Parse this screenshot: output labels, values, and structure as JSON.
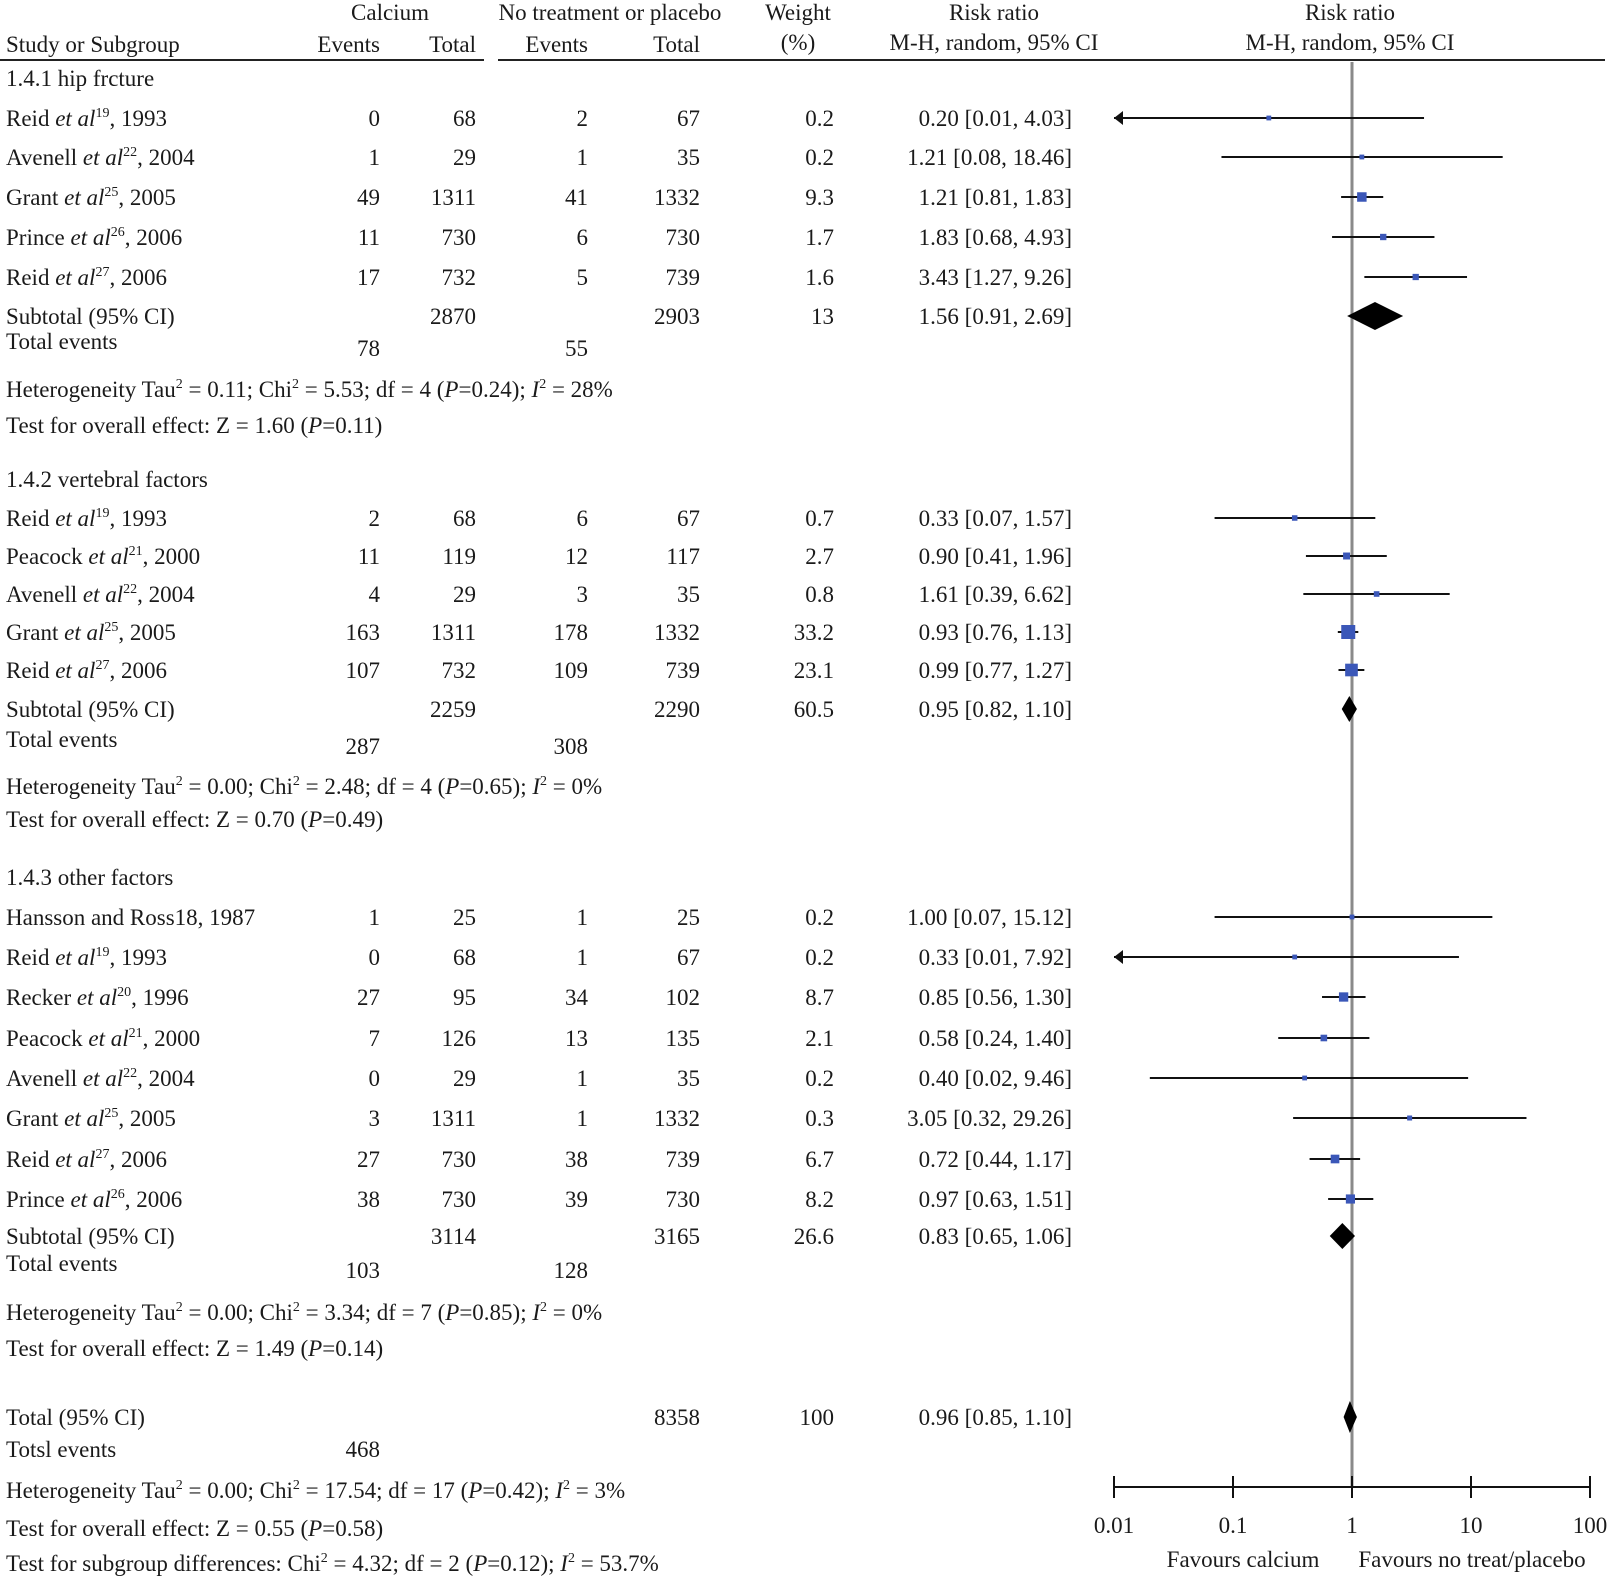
{
  "header": {
    "study_col": "Study or Subgroup",
    "calcium_group": "Calcium",
    "control_group": "No treatment or placebo",
    "events": "Events",
    "total": "Total",
    "weight_l1": "Weight",
    "weight_l2": "(%)",
    "rr_l1": "Risk ratio",
    "rr_l2": "M-H, random, 95% CI"
  },
  "chart_data": {
    "type": "forest",
    "x_scale": "log",
    "xlim": [
      0.01,
      100
    ],
    "x_ticks": [
      "0.01",
      "0.1",
      "1",
      "10",
      "100"
    ],
    "x_tick_values": [
      0.01,
      0.1,
      1,
      10,
      100
    ],
    "reference_line": 1,
    "favours_left": "Favours calcium",
    "favours_right": "Favours no treat/placebo",
    "series_color": "#3b57b8",
    "subgroups": [
      {
        "title": "1.4.1 hip frcture",
        "studies": [
          {
            "author": "Reid ",
            "etal": "et al",
            "ref": "19",
            "year": ", 1993",
            "ce": "0",
            "ct": "68",
            "pe": "2",
            "pt": "67",
            "weight": "0.2",
            "ci": "0.20 [0.01, 4.03]",
            "rr": 0.2,
            "lo": 0.01,
            "hi": 4.03
          },
          {
            "author": "Avenell ",
            "etal": "et al",
            "ref": "22",
            "year": ", 2004",
            "ce": "1",
            "ct": "29",
            "pe": "1",
            "pt": "35",
            "weight": "0.2",
            "ci": "1.21 [0.08, 18.46]",
            "rr": 1.21,
            "lo": 0.08,
            "hi": 18.46
          },
          {
            "author": "Grant ",
            "etal": "et al",
            "ref": "25",
            "year": ", 2005",
            "ce": "49",
            "ct": "1311",
            "pe": "41",
            "pt": "1332",
            "weight": "9.3",
            "ci": "1.21 [0.81, 1.83]",
            "rr": 1.21,
            "lo": 0.81,
            "hi": 1.83
          },
          {
            "author": "Prince ",
            "etal": "et al",
            "ref": "26",
            "year": ", 2006",
            "ce": "11",
            "ct": "730",
            "pe": "6",
            "pt": "730",
            "weight": "1.7",
            "ci": "1.83 [0.68, 4.93]",
            "rr": 1.83,
            "lo": 0.68,
            "hi": 4.93
          },
          {
            "author": "Reid ",
            "etal": "et al",
            "ref": "27",
            "year": ", 2006",
            "ce": "17",
            "ct": "732",
            "pe": "5",
            "pt": "739",
            "weight": "1.6",
            "ci": "3.43 [1.27, 9.26]",
            "rr": 3.43,
            "lo": 1.27,
            "hi": 9.26
          }
        ],
        "subtotal_label": "Subtotal (95% CI)",
        "subtotal": {
          "ct": "2870",
          "pt": "2903",
          "weight": "13",
          "ci": "1.56 [0.91, 2.69]",
          "rr": 1.56,
          "lo": 0.91,
          "hi": 2.69
        },
        "total_events_label": "Total events",
        "total_events": {
          "c": "78",
          "p": "55"
        },
        "het_a": "Heterogeneity Tau",
        "het_b": " = 0.11; Chi",
        "het_c": " = 5.53; df = 4 (",
        "het_d": "=0.24); ",
        "het_e": " = 28%",
        "test_a": "Test for overall effect: Z = 1.60 (",
        "test_b": "=0.11)"
      },
      {
        "title": "1.4.2 vertebral factors",
        "studies": [
          {
            "author": "Reid ",
            "etal": "et al",
            "ref": "19",
            "year": ", 1993",
            "ce": "2",
            "ct": "68",
            "pe": "6",
            "pt": "67",
            "weight": "0.7",
            "ci": "0.33 [0.07, 1.57]",
            "rr": 0.33,
            "lo": 0.07,
            "hi": 1.57
          },
          {
            "author": "Peacock ",
            "etal": "et al",
            "ref": "21",
            "year": ", 2000",
            "ce": "11",
            "ct": "119",
            "pe": "12",
            "pt": "117",
            "weight": "2.7",
            "ci": "0.90 [0.41, 1.96]",
            "rr": 0.9,
            "lo": 0.41,
            "hi": 1.96
          },
          {
            "author": "Avenell ",
            "etal": "et al",
            "ref": "22",
            "year": ", 2004",
            "ce": "4",
            "ct": "29",
            "pe": "3",
            "pt": "35",
            "weight": "0.8",
            "ci": "1.61 [0.39, 6.62]",
            "rr": 1.61,
            "lo": 0.39,
            "hi": 6.62
          },
          {
            "author": "Grant ",
            "etal": "et al",
            "ref": "25",
            "year": ", 2005",
            "ce": "163",
            "ct": "1311",
            "pe": "178",
            "pt": "1332",
            "weight": "33.2",
            "ci": "0.93 [0.76, 1.13]",
            "rr": 0.93,
            "lo": 0.76,
            "hi": 1.13
          },
          {
            "author": "Reid ",
            "etal": "et al",
            "ref": "27",
            "year": ", 2006",
            "ce": "107",
            "ct": "732",
            "pe": "109",
            "pt": "739",
            "weight": "23.1",
            "ci": "0.99 [0.77, 1.27]",
            "rr": 0.99,
            "lo": 0.77,
            "hi": 1.27
          }
        ],
        "subtotal_label": "Subtotal (95% CI)",
        "subtotal": {
          "ct": "2259",
          "pt": "2290",
          "weight": "60.5",
          "ci": "0.95 [0.82, 1.10]",
          "rr": 0.95,
          "lo": 0.82,
          "hi": 1.1
        },
        "total_events_label": "Total events",
        "total_events": {
          "c": "287",
          "p": "308"
        },
        "het_a": "Heterogeneity Tau",
        "het_b": " = 0.00; Chi",
        "het_c": " = 2.48; df = 4 (",
        "het_d": "=0.65); ",
        "het_e": " = 0%",
        "test_a": "Test for overall effect: Z = 0.70 (",
        "test_b": "=0.49)"
      },
      {
        "title": "1.4.3 other factors",
        "studies": [
          {
            "author": "Hansson and Ross18, 1987",
            "etal": "",
            "ref": "",
            "year": "",
            "ce": "1",
            "ct": "25",
            "pe": "1",
            "pt": "25",
            "weight": "0.2",
            "ci": "1.00 [0.07, 15.12]",
            "rr": 1.0,
            "lo": 0.07,
            "hi": 15.12
          },
          {
            "author": "Reid ",
            "etal": "et al",
            "ref": "19",
            "year": ", 1993",
            "ce": "0",
            "ct": "68",
            "pe": "1",
            "pt": "67",
            "weight": "0.2",
            "ci": "0.33 [0.01, 7.92]",
            "rr": 0.33,
            "lo": 0.01,
            "hi": 7.92
          },
          {
            "author": "Recker ",
            "etal": "et al",
            "ref": "20",
            "year": ", 1996",
            "ce": "27",
            "ct": "95",
            "pe": "34",
            "pt": "102",
            "weight": "8.7",
            "ci": "0.85 [0.56, 1.30]",
            "rr": 0.85,
            "lo": 0.56,
            "hi": 1.3
          },
          {
            "author": "Peacock ",
            "etal": "et al",
            "ref": "21",
            "year": ", 2000",
            "ce": "7",
            "ct": "126",
            "pe": "13",
            "pt": "135",
            "weight": "2.1",
            "ci": "0.58 [0.24, 1.40]",
            "rr": 0.58,
            "lo": 0.24,
            "hi": 1.4
          },
          {
            "author": "Avenell ",
            "etal": "et al",
            "ref": "22",
            "year": ", 2004",
            "ce": "0",
            "ct": "29",
            "pe": "1",
            "pt": "35",
            "weight": "0.2",
            "ci": "0.40 [0.02, 9.46]",
            "rr": 0.4,
            "lo": 0.02,
            "hi": 9.46
          },
          {
            "author": "Grant ",
            "etal": "et al",
            "ref": "25",
            "year": ", 2005",
            "ce": "3",
            "ct": "1311",
            "pe": "1",
            "pt": "1332",
            "weight": "0.3",
            "ci": "3.05 [0.32, 29.26]",
            "rr": 3.05,
            "lo": 0.32,
            "hi": 29.26
          },
          {
            "author": "Reid ",
            "etal": "et al",
            "ref": "27",
            "year": ", 2006",
            "ce": "27",
            "ct": "730",
            "pe": "38",
            "pt": "739",
            "weight": "6.7",
            "ci": "0.72 [0.44, 1.17]",
            "rr": 0.72,
            "lo": 0.44,
            "hi": 1.17
          },
          {
            "author": "Prince ",
            "etal": "et al",
            "ref": "26",
            "year": ", 2006",
            "ce": "38",
            "ct": "730",
            "pe": "39",
            "pt": "730",
            "weight": "8.2",
            "ci": "0.97 [0.63, 1.51]",
            "rr": 0.97,
            "lo": 0.63,
            "hi": 1.51
          }
        ],
        "subtotal_label": "Subtotal (95% CI)",
        "subtotal": {
          "ct": "3114",
          "pt": "3165",
          "weight": "26.6",
          "ci": "0.83 [0.65, 1.06]",
          "rr": 0.83,
          "lo": 0.65,
          "hi": 1.06
        },
        "total_events_label": "Total events",
        "total_events": {
          "c": "103",
          "p": "128"
        },
        "het_a": "Heterogeneity Tau",
        "het_b": " = 0.00; Chi",
        "het_c": " = 3.34; df = 7 (",
        "het_d": "=0.85); ",
        "het_e": " = 0%",
        "test_a": "Test for overall effect: Z = 1.49 (",
        "test_b": "=0.14)"
      }
    ],
    "overall": {
      "label": "Total (95% CI)",
      "pt": "8358",
      "weight": "100",
      "ci": "0.96 [0.85, 1.10]",
      "rr": 0.96,
      "lo": 0.85,
      "hi": 1.1,
      "events_label": "Totsl events",
      "events_c": "468",
      "het_a": "Heterogeneity Tau",
      "het_b": " = 0.00; Chi",
      "het_c": " = 17.54; df = 17 (",
      "het_d": "=0.42); ",
      "het_e": " = 3%",
      "test_a": "Test for overall effect: Z = 0.55 (",
      "test_b": "=0.58)",
      "subgroup_a": "Test for subgroup differences: Chi",
      "subgroup_b": " = 4.32; df = 2 (",
      "subgroup_c": "=0.12); ",
      "subgroup_d": " = 53.7%"
    },
    "glyphs": {
      "sq": "2",
      "P": "P",
      "I": "I"
    }
  }
}
